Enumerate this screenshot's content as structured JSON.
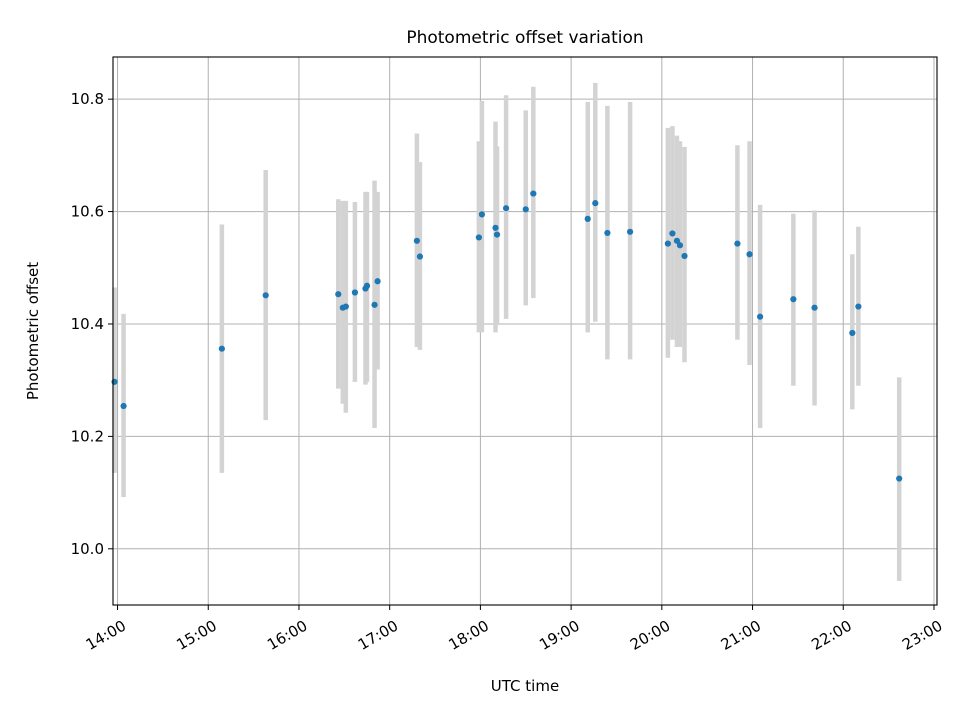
{
  "chart_data": {
    "type": "scatter",
    "title": "Photometric offset variation",
    "xlabel": "UTC time",
    "ylabel": "Photometric offset",
    "x_ticks": [
      "14:00",
      "15:00",
      "16:00",
      "17:00",
      "18:00",
      "19:00",
      "20:00",
      "21:00",
      "22:00",
      "23:00"
    ],
    "y_ticks": [
      "10.0",
      "10.2",
      "10.4",
      "10.6",
      "10.8"
    ],
    "xlim": [
      "13:57",
      "23:02"
    ],
    "ylim": [
      9.9,
      10.875
    ],
    "grid": true,
    "colors": {
      "point": "#1f77b4",
      "errorbar": "#d3d3d3",
      "grid": "#b0b0b0"
    },
    "series": [
      {
        "points": [
          {
            "t": "13:58",
            "y": 10.297,
            "lo": 10.135,
            "hi": 10.465
          },
          {
            "t": "14:04",
            "y": 10.254,
            "lo": 10.092,
            "hi": 10.418
          },
          {
            "t": "15:09",
            "y": 10.356,
            "lo": 10.135,
            "hi": 10.577
          },
          {
            "t": "15:38",
            "y": 10.451,
            "lo": 10.229,
            "hi": 10.674
          },
          {
            "t": "16:26",
            "y": 10.453,
            "lo": 10.285,
            "hi": 10.622
          },
          {
            "t": "16:29",
            "y": 10.429,
            "lo": 10.258,
            "hi": 10.619
          },
          {
            "t": "16:31",
            "y": 10.431,
            "lo": 10.242,
            "hi": 10.619
          },
          {
            "t": "16:37",
            "y": 10.456,
            "lo": 10.297,
            "hi": 10.617
          },
          {
            "t": "16:44",
            "y": 10.463,
            "lo": 10.292,
            "hi": 10.635
          },
          {
            "t": "16:45",
            "y": 10.468,
            "lo": 10.297,
            "hi": 10.635
          },
          {
            "t": "16:50",
            "y": 10.434,
            "lo": 10.215,
            "hi": 10.655
          },
          {
            "t": "16:52",
            "y": 10.476,
            "lo": 10.319,
            "hi": 10.635
          },
          {
            "t": "17:18",
            "y": 10.548,
            "lo": 10.359,
            "hi": 10.739
          },
          {
            "t": "17:20",
            "y": 10.52,
            "lo": 10.354,
            "hi": 10.688
          },
          {
            "t": "17:59",
            "y": 10.554,
            "lo": 10.385,
            "hi": 10.725
          },
          {
            "t": "18:01",
            "y": 10.595,
            "lo": 10.385,
            "hi": 10.797
          },
          {
            "t": "18:10",
            "y": 10.571,
            "lo": 10.385,
            "hi": 10.76
          },
          {
            "t": "18:11",
            "y": 10.559,
            "lo": 10.398,
            "hi": 10.716
          },
          {
            "t": "18:17",
            "y": 10.606,
            "lo": 10.409,
            "hi": 10.807
          },
          {
            "t": "18:30",
            "y": 10.604,
            "lo": 10.433,
            "hi": 10.78
          },
          {
            "t": "18:35",
            "y": 10.632,
            "lo": 10.446,
            "hi": 10.822
          },
          {
            "t": "19:11",
            "y": 10.587,
            "lo": 10.385,
            "hi": 10.795
          },
          {
            "t": "19:16",
            "y": 10.615,
            "lo": 10.404,
            "hi": 10.829
          },
          {
            "t": "19:24",
            "y": 10.562,
            "lo": 10.337,
            "hi": 10.788
          },
          {
            "t": "19:39",
            "y": 10.564,
            "lo": 10.337,
            "hi": 10.795
          },
          {
            "t": "20:04",
            "y": 10.543,
            "lo": 10.34,
            "hi": 10.749
          },
          {
            "t": "20:07",
            "y": 10.561,
            "lo": 10.372,
            "hi": 10.752
          },
          {
            "t": "20:10",
            "y": 10.548,
            "lo": 10.359,
            "hi": 10.735
          },
          {
            "t": "20:12",
            "y": 10.54,
            "lo": 10.359,
            "hi": 10.725
          },
          {
            "t": "20:15",
            "y": 10.521,
            "lo": 10.332,
            "hi": 10.715
          },
          {
            "t": "20:50",
            "y": 10.543,
            "lo": 10.372,
            "hi": 10.718
          },
          {
            "t": "20:58",
            "y": 10.524,
            "lo": 10.327,
            "hi": 10.725
          },
          {
            "t": "21:05",
            "y": 10.413,
            "lo": 10.215,
            "hi": 10.612
          },
          {
            "t": "21:27",
            "y": 10.444,
            "lo": 10.29,
            "hi": 10.596
          },
          {
            "t": "21:41",
            "y": 10.429,
            "lo": 10.255,
            "hi": 10.602
          },
          {
            "t": "22:06",
            "y": 10.384,
            "lo": 10.248,
            "hi": 10.524
          },
          {
            "t": "22:10",
            "y": 10.431,
            "lo": 10.29,
            "hi": 10.573
          },
          {
            "t": "22:37",
            "y": 10.125,
            "lo": 9.943,
            "hi": 10.305
          }
        ]
      }
    ]
  }
}
